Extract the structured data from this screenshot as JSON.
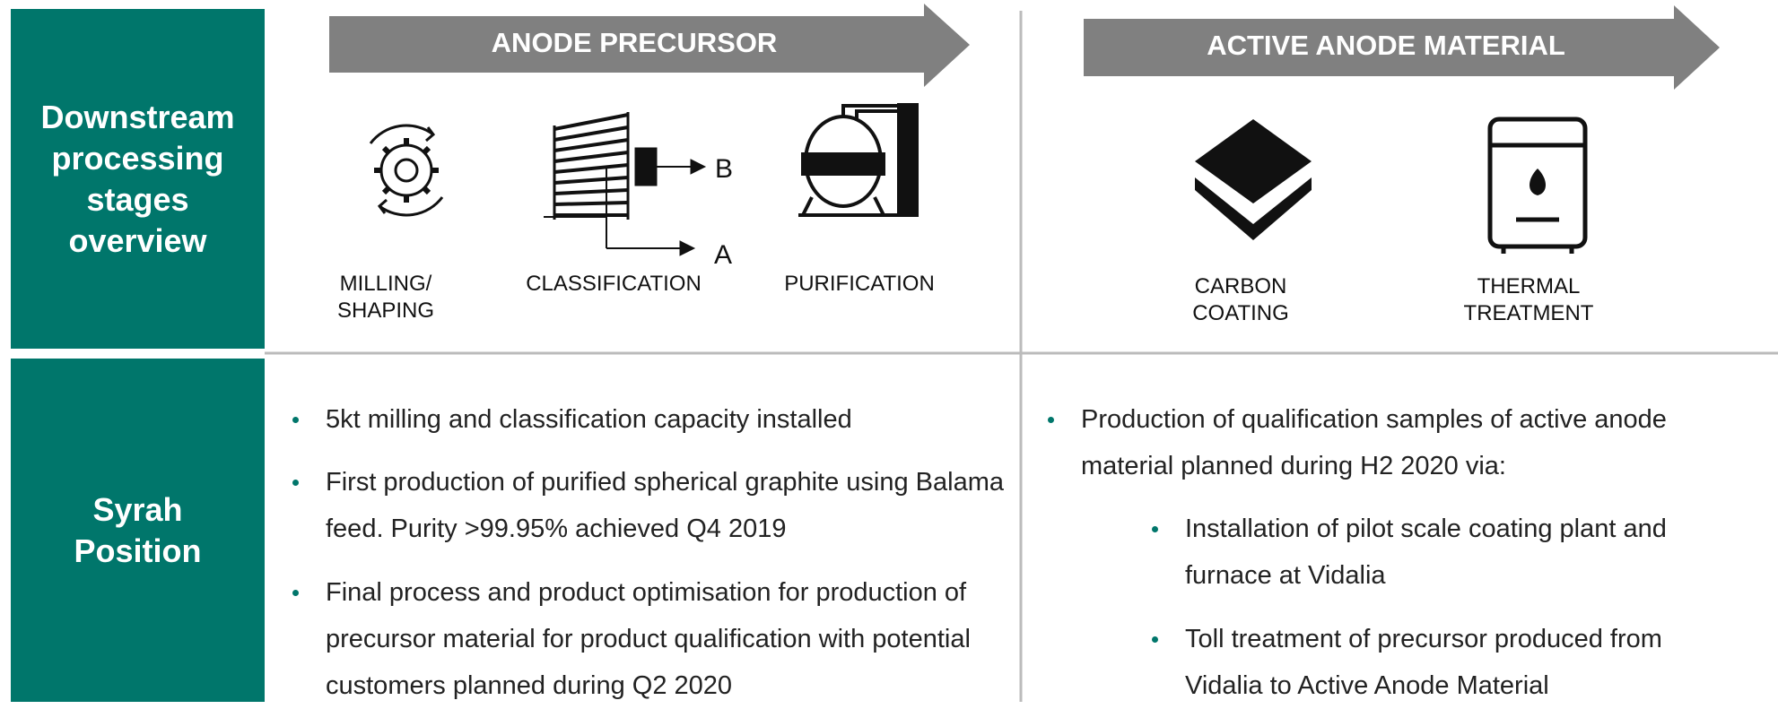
{
  "header": {
    "title": "Downstream\nprocessing\nstages\noverview"
  },
  "sections": [
    {
      "title": "ANODE PRECURSOR",
      "stages": [
        "MILLING/\nSHAPING",
        "CLASSIFICATION",
        "PURIFICATION"
      ]
    },
    {
      "title": "ACTIVE ANODE MATERIAL",
      "stages": [
        "CARBON\nCOATING",
        "THERMAL\nTREATMENT"
      ]
    }
  ],
  "diagram_labels": [
    "B",
    "A"
  ],
  "position": {
    "title": "Syrah\nPosition",
    "left": [
      "5kt milling and classification capacity installed",
      "First production of purified spherical graphite using Balama feed. Purity >99.95% achieved Q4 2019",
      "Final process and product optimisation for production of precursor material for product qualification with potential customers planned during Q2 2020"
    ],
    "right": {
      "intro": "Production of qualification samples of active anode material planned during H2 2020 via:",
      "items": [
        "Installation of pilot scale coating plant and furnace at Vidalia",
        "Toll treatment of precursor produced from Vidalia to Active Anode Material"
      ]
    }
  }
}
